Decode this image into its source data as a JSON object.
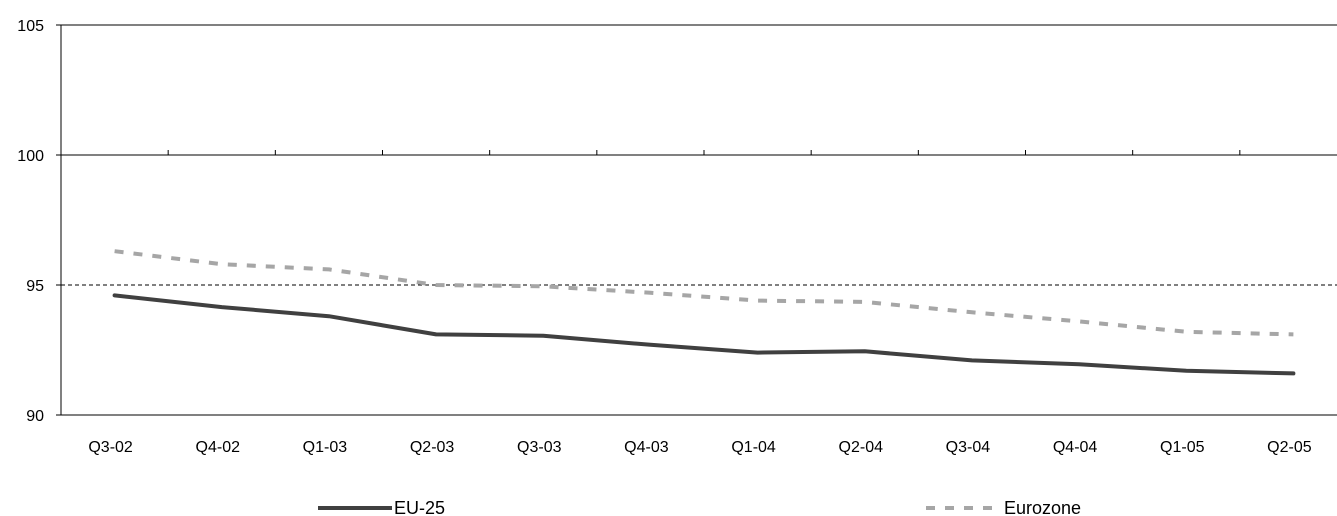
{
  "chart_data": {
    "type": "line",
    "title": "",
    "xlabel": "",
    "ylabel": "",
    "ylim": [
      90,
      105
    ],
    "yticks": [
      "90",
      "95",
      "100",
      "105"
    ],
    "categories": [
      "Q3-02",
      "Q4-02",
      "Q1-03",
      "Q2-03",
      "Q3-03",
      "Q4-03",
      "Q1-04",
      "Q2-04",
      "Q3-04",
      "Q4-04",
      "Q1-05",
      "Q2-05"
    ],
    "reference_line": 95,
    "series": [
      {
        "name": "EU-25",
        "color": "#404040",
        "style": "solid",
        "values": [
          94.6,
          94.15,
          93.8,
          93.1,
          93.05,
          92.7,
          92.4,
          92.45,
          92.1,
          91.95,
          91.7,
          91.6
        ]
      },
      {
        "name": "Eurozone",
        "color": "#a6a6a6",
        "style": "dashed",
        "values": [
          96.3,
          95.8,
          95.6,
          95.0,
          94.95,
          94.7,
          94.4,
          94.35,
          93.95,
          93.6,
          93.2,
          93.1
        ]
      }
    ],
    "grid": false,
    "legend_position": "bottom"
  }
}
